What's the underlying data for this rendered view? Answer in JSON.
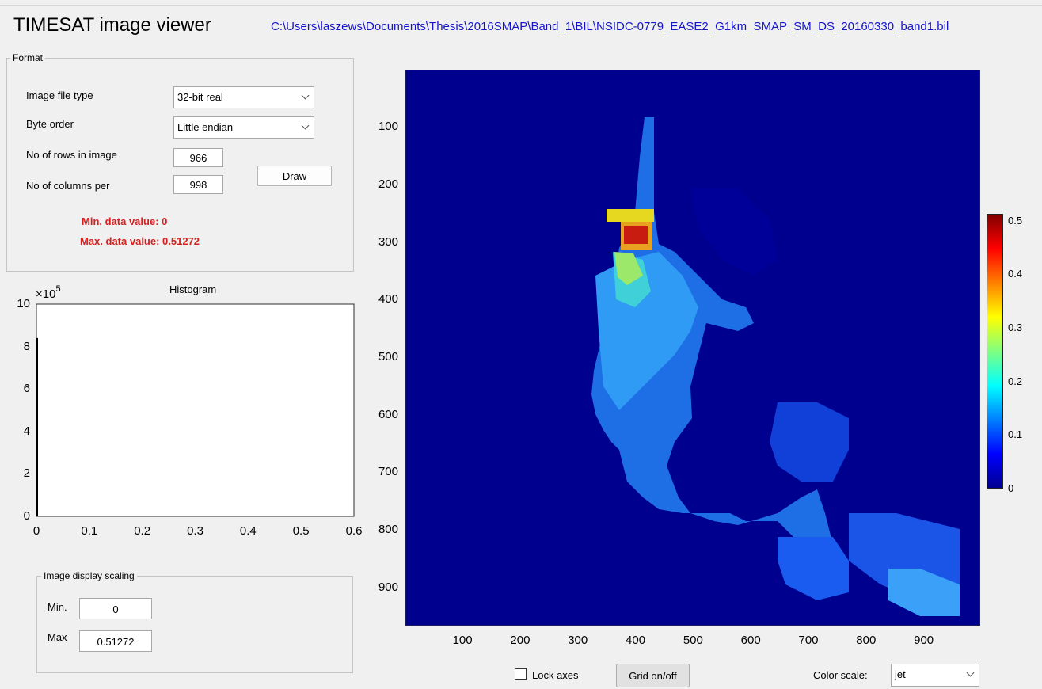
{
  "header": {
    "title": "TIMESAT image viewer",
    "file_path": "C:\\Users\\laszews\\Documents\\Thesis\\2016SMAP\\Band_1\\BIL\\NSIDC-0779_EASE2_G1km_SMAP_SM_DS_20160330_band1.bil"
  },
  "format": {
    "legend": "Format",
    "file_type_label": "Image file type",
    "file_type_value": "32-bit real",
    "byte_order_label": "Byte order",
    "byte_order_value": "Little endian",
    "rows_label": "No of rows in image",
    "rows_value": "966",
    "cols_label": "No of columns per",
    "cols_value": "998",
    "draw_label": "Draw",
    "min_text": "Min. data value: 0",
    "max_text": "Max. data value: 0.51272"
  },
  "histogram": {
    "title": "Histogram",
    "exponent_base": "×10",
    "exponent_power": "5",
    "y_ticks": [
      "10",
      "8",
      "6",
      "4",
      "2",
      "0"
    ],
    "x_ticks": [
      "0",
      "0.1",
      "0.2",
      "0.3",
      "0.4",
      "0.5",
      "0.6"
    ],
    "xlim": [
      0,
      0.6
    ],
    "ylim": [
      0,
      1000000
    ],
    "bin0_count": 840000
  },
  "scaling": {
    "legend": "Image display scaling",
    "min_label": "Min.",
    "min_value": "0",
    "max_label": "Max",
    "max_value": "0.51272"
  },
  "image": {
    "y_ticks": [
      "100",
      "200",
      "300",
      "400",
      "500",
      "600",
      "700",
      "800",
      "900"
    ],
    "x_ticks": [
      "100",
      "200",
      "300",
      "400",
      "500",
      "600",
      "700",
      "800",
      "900"
    ],
    "xlim": [
      1,
      998
    ],
    "ylim": [
      1,
      966
    ],
    "colormap": "jet",
    "background_color": "#00008f"
  },
  "colorbar": {
    "ticks": [
      "0.5",
      "0.4",
      "0.3",
      "0.2",
      "0.1",
      "0"
    ],
    "range": [
      0,
      0.51272
    ]
  },
  "controls": {
    "lock_axes_label": "Lock axes",
    "lock_axes_checked": false,
    "grid_button_label": "Grid on/off",
    "color_scale_label": "Color scale:",
    "color_scale_value": "jet"
  }
}
